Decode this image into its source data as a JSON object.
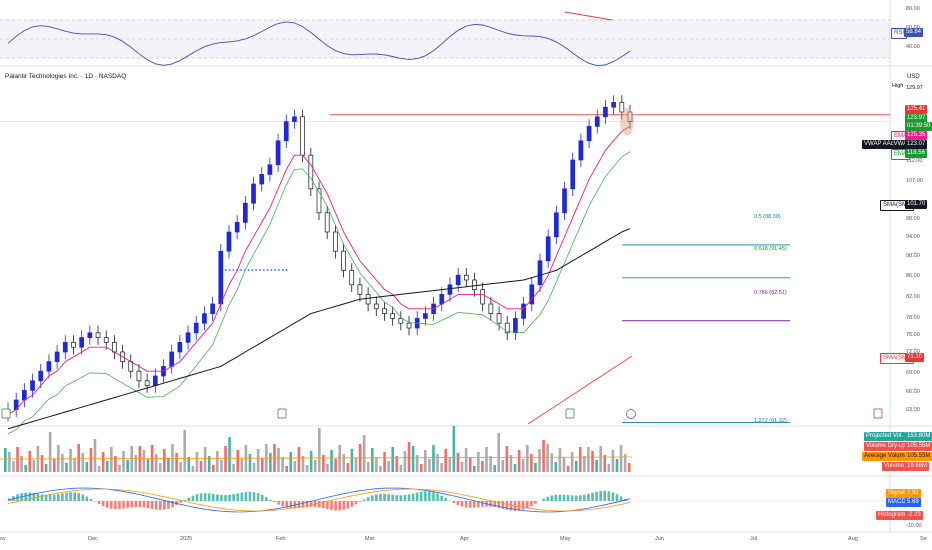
{
  "title": "Palantir Technologies Inc. · 1D · NASDAQ",
  "currency": "USD",
  "x_axis": [
    "ov",
    "Dec",
    "2025",
    "Feb",
    "Mar",
    "Apr",
    "May",
    "Jun",
    "Jul",
    "Aug",
    "Se"
  ],
  "rsi": {
    "label": "RSI",
    "value": "58.84",
    "ticks": [
      "80.00",
      "60.00",
      "40.00"
    ]
  },
  "price_axis": {
    "ticks": [
      "112.00",
      "107.00",
      "98.00",
      "94.00",
      "90.00",
      "86.00",
      "82.00",
      "78.00",
      "75.00",
      "72.00",
      "69.00",
      "66.00",
      "63.00"
    ],
    "high_label": "High",
    "high_value": "129.97"
  },
  "price_tags": {
    "resistance": "125.41",
    "last": "123.97",
    "countdown": "01:39:50",
    "ema1_label": "EMA",
    "ema1_value": "125.35",
    "vwap_label": "VWAP AAcVWAP",
    "vwap_value": "123.07",
    "ema2_label": "EMA",
    "ema2_value": "118.56",
    "sma1_label": "SMA(SMA",
    "sma1_value": "101.70",
    "sma2_label": "SMA(SMA",
    "sma2_value": "71.10"
  },
  "fib_levels": [
    {
      "label": "0.5 (98.30)",
      "color": "#0f7ea8"
    },
    {
      "label": "0.618 (91.45)",
      "color": "#1b9a2f"
    },
    {
      "label": "0.786 (82.51)",
      "color": "#7b1fa2"
    },
    {
      "label": "1.272 (61.32)",
      "color": "#0f7ea8"
    }
  ],
  "volume": {
    "projected_label": "Projected Vol.",
    "projected_value": "153.80M",
    "upd_label": "Volume Dry-up",
    "upd_value": "105.55M",
    "avg_label": "Average Volume",
    "avg_value": "105.55M",
    "vol_label": "Volume",
    "vol_value": "19.66M"
  },
  "macd": {
    "signal_label": "Signal",
    "signal_value": "7.92",
    "macd_label": "MACD",
    "macd_value": "5.69",
    "hist_label": "Histogram",
    "hist_value": "-2.23",
    "tick": "-10.00"
  },
  "colors": {
    "up": "#2029d6",
    "down": "#131722",
    "ema_fast": "#e91e8c",
    "ema_slow": "#4caf50",
    "sma_long": "#131722",
    "sma_ext": "#f44336",
    "rsi_line": "#3f51b5",
    "resistance": "#e53935"
  },
  "chart_data": {
    "type": "candlestick",
    "title": "Palantir Technologies Inc. · 1D · NASDAQ",
    "series": [
      {
        "name": "Close",
        "values": [
          64,
          66,
          68,
          70,
          72,
          74,
          76,
          78,
          77,
          79,
          80,
          79,
          78,
          76,
          74,
          72,
          70,
          69,
          71,
          73,
          76,
          78,
          80,
          82,
          84,
          86,
          97,
          101,
          103,
          107,
          111,
          113,
          115,
          120,
          124,
          125,
          117,
          110,
          105,
          101,
          97,
          93,
          90,
          88,
          86,
          85,
          84,
          83,
          82,
          81,
          83,
          84,
          86,
          88,
          90,
          92,
          91,
          89,
          86,
          84,
          82,
          80,
          83,
          86,
          90,
          95,
          100,
          105,
          110,
          116,
          120,
          123,
          125,
          127,
          128,
          126,
          124
        ]
      },
      {
        "name": "EMA",
        "values": [
          63,
          64,
          66,
          67,
          69,
          71,
          72,
          74,
          75,
          76,
          77,
          77,
          77,
          76,
          75,
          74,
          73,
          72,
          72,
          72,
          73,
          74,
          76,
          78,
          80,
          82,
          86,
          90,
          93,
          97,
          100,
          103,
          106,
          110,
          114,
          117,
          117,
          115,
          112,
          109,
          105,
          101,
          98,
          95,
          93,
          91,
          89,
          88,
          86,
          85,
          85,
          85,
          85,
          86,
          87,
          88,
          88,
          88,
          88,
          87,
          86,
          85,
          85,
          85,
          87,
          89,
          92,
          96,
          100,
          104,
          108,
          112,
          115,
          118,
          120,
          122,
          123
        ]
      },
      {
        "name": "SMA",
        "values": [
          60,
          60.5,
          61,
          61.5,
          62,
          62.5,
          63,
          63.5,
          64,
          64.5,
          65,
          65.5,
          66,
          66.5,
          67,
          67.5,
          68,
          68.5,
          69,
          69.5,
          70,
          70.5,
          71,
          71.5,
          72,
          72.5,
          73,
          74,
          75,
          76,
          77,
          78,
          79,
          80,
          81,
          82,
          83,
          84,
          84.5,
          85,
          85.5,
          86,
          86.5,
          87,
          87.2,
          87.4,
          87.6,
          87.8,
          88,
          88.2,
          88.4,
          88.6,
          88.8,
          89,
          89.2,
          89.4,
          89.6,
          89.8,
          90,
          90.2,
          90.4,
          90.6,
          90.8,
          91,
          91.5,
          92,
          92.5,
          93,
          94,
          95,
          96,
          97,
          98,
          99,
          100,
          101,
          101.7
        ]
      }
    ],
    "resistance": 125.41,
    "fib": [
      98.3,
      91.45,
      82.51,
      61.32
    ],
    "ylim": [
      61,
      131
    ]
  }
}
